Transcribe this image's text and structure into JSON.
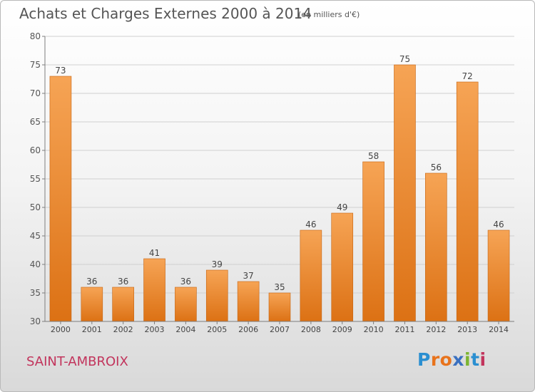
{
  "header": {
    "title": "Achats et Charges Externes 2000 à 2014",
    "subtitle": "(en milliers d'€)"
  },
  "footer": {
    "place": "SAINT-AMBROIX",
    "logo_letters": [
      "P",
      "r",
      "o",
      "x",
      "i",
      "t",
      "i"
    ]
  },
  "colors": {
    "bar_light": "#f6a455",
    "bar_dark": "#dc7114",
    "bar_edge": "#c56412",
    "grid": "#d0d0d0",
    "axis": "#7d7d7d",
    "logo": [
      "#2b8fd1",
      "#e8731c",
      "#e8731c",
      "#3a70c0",
      "#7cb531",
      "#2b8fd1",
      "#c2345c"
    ]
  },
  "chart_data": {
    "type": "bar",
    "categories": [
      "2000",
      "2001",
      "2002",
      "2003",
      "2004",
      "2005",
      "2006",
      "2007",
      "2008",
      "2009",
      "2010",
      "2011",
      "2012",
      "2013",
      "2014"
    ],
    "values": [
      73,
      36,
      36,
      41,
      36,
      39,
      37,
      35,
      46,
      49,
      58,
      75,
      56,
      72,
      46
    ],
    "ylim": [
      30,
      80
    ],
    "yticks": [
      30,
      35,
      40,
      45,
      50,
      55,
      60,
      65,
      70,
      75,
      80
    ],
    "grid": true
  }
}
